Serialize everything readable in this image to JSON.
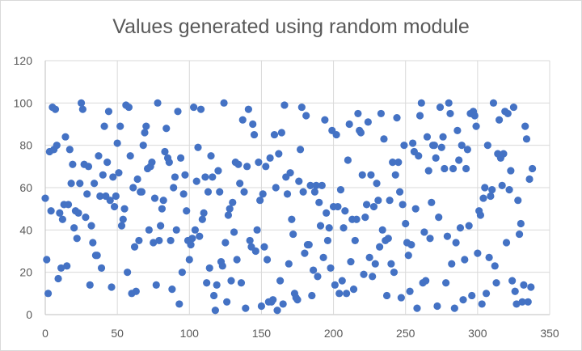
{
  "chart_data": {
    "type": "scatter",
    "title": "Values generated using random module",
    "xlim": [
      0,
      350
    ],
    "ylim": [
      0,
      120
    ],
    "x_ticks": [
      0,
      50,
      100,
      150,
      200,
      250,
      300,
      350
    ],
    "y_ticks": [
      0,
      20,
      40,
      60,
      80,
      100,
      120
    ],
    "grid": {
      "horizontal": true,
      "vertical": true
    },
    "legend": "none",
    "marker_color": "#4472c4",
    "series": [
      {
        "y": [
          55,
          26,
          10,
          77,
          49,
          98,
          78,
          97,
          80,
          17,
          48,
          22,
          45,
          52,
          84,
          23,
          52,
          78,
          62,
          71,
          41,
          49,
          36,
          48,
          62,
          100,
          97,
          71,
          46,
          57,
          70,
          14,
          42,
          34,
          62,
          28,
          28,
          75,
          56,
          22,
          66,
          89,
          56,
          72,
          96,
          54,
          13,
          65,
          51,
          56,
          81,
          67,
          89,
          42,
          45,
          50,
          99,
          20,
          98,
          75,
          10,
          60,
          32,
          11,
          64,
          35,
          58,
          58,
          80,
          86,
          89,
          69,
          40,
          70,
          72,
          34,
          55,
          14,
          100,
          35,
          42,
          50,
          54,
          77,
          88,
          74,
          72,
          35,
          12,
          60,
          65,
          40,
          96,
          5,
          74,
          20,
          57,
          66,
          49,
          35,
          26,
          33,
          36,
          98,
          40,
          63,
          79,
          37,
          97,
          45,
          48,
          65,
          15,
          58,
          22,
          75,
          65,
          9,
          2,
          14,
          68,
          58,
          25,
          23,
          100,
          34,
          6,
          47,
          50,
          16,
          53,
          39,
          72,
          26,
          71,
          62,
          15,
          92,
          58,
          3,
          70,
          97,
          35,
          32,
          90,
          85,
          30,
          40,
          72,
          54,
          4,
          57,
          32,
          70,
          26,
          6,
          74,
          6,
          7,
          85,
          60,
          2,
          76,
          16,
          86,
          5,
          99,
          65,
          57,
          24,
          67,
          45,
          38,
          10,
          8,
          7,
          63,
          78,
          98,
          58,
          29,
          94,
          33,
          33,
          61,
          9,
          21,
          58,
          61,
          18,
          53,
          42,
          61,
          27,
          92,
          48,
          35,
          41,
          22,
          87,
          51,
          14,
          85,
          51,
          10,
          59,
          16,
          41,
          49,
          10,
          73,
          90,
          25,
          45,
          12,
          35,
          45,
          95,
          87,
          86,
          66,
          19,
          46,
          52,
          91,
          27,
          66,
          18,
          51,
          24,
          62,
          54,
          32,
          95,
          40,
          83,
          35,
          9,
          36,
          54,
          24,
          72,
          20,
          66,
          93,
          72,
          58,
          8,
          52,
          80,
          43,
          34,
          28,
          11,
          33,
          81,
          77,
          50,
          3,
          75,
          94,
          100,
          15,
          39,
          16,
          84,
          68,
          36,
          53,
          80,
          80,
          74,
          4,
          46,
          98,
          79,
          84,
          69,
          15,
          37,
          100,
          95,
          24,
          69,
          3,
          34,
          87,
          73,
          41,
          80,
          7,
          26,
          69,
          78,
          42,
          95,
          9,
          96,
          94,
          89,
          29,
          49,
          47,
          5,
          55,
          60,
          10,
          80,
          27,
          56,
          59,
          100,
          23,
          15,
          76,
          92,
          74,
          61,
          76,
          96,
          34,
          95,
          59,
          68,
          16,
          98,
          11,
          5,
          54,
          38,
          43,
          6,
          14,
          89,
          83,
          6,
          64,
          13,
          69
        ]
      }
    ]
  }
}
